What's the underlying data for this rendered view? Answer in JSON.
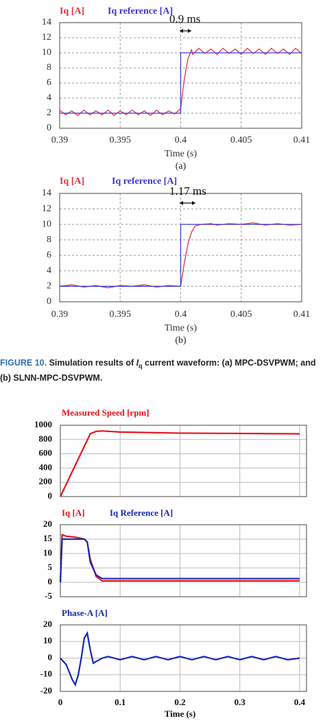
{
  "chart_data": [
    {
      "type": "line",
      "xlabel": "Time (s)",
      "caption": "(a)",
      "annotation": "0.9 ms",
      "xlim": [
        0.39,
        0.41
      ],
      "xticks": [
        0.39,
        0.395,
        0.4,
        0.405,
        0.41
      ],
      "ylim": [
        0,
        14
      ],
      "yticks": [
        0,
        2,
        4,
        6,
        8,
        10,
        12,
        14
      ],
      "grid": true,
      "series": [
        {
          "name": "Iq [A]",
          "color": "#e8323c",
          "x": [
            0.39,
            0.3905,
            0.391,
            0.3915,
            0.392,
            0.3925,
            0.393,
            0.3935,
            0.394,
            0.3945,
            0.395,
            0.3955,
            0.396,
            0.3965,
            0.397,
            0.3975,
            0.398,
            0.3985,
            0.399,
            0.3995,
            0.4,
            0.4003,
            0.4006,
            0.4009,
            0.401,
            0.4015,
            0.402,
            0.4025,
            0.403,
            0.4035,
            0.404,
            0.4045,
            0.405,
            0.4055,
            0.406,
            0.4065,
            0.407,
            0.4075,
            0.408,
            0.4085,
            0.409,
            0.4095,
            0.41
          ],
          "values": [
            2.4,
            1.8,
            2.3,
            1.7,
            2.4,
            1.8,
            2.3,
            1.8,
            2.4,
            1.7,
            2.3,
            1.8,
            2.4,
            1.8,
            2.3,
            1.7,
            2.4,
            1.8,
            2.3,
            1.9,
            2.6,
            6.5,
            9.2,
            10.4,
            9.8,
            10.6,
            9.9,
            10.5,
            9.8,
            10.6,
            9.9,
            10.5,
            9.8,
            10.6,
            9.9,
            10.5,
            9.8,
            10.6,
            9.9,
            10.5,
            9.8,
            10.6,
            9.9
          ]
        },
        {
          "name": "Iq reference [A]",
          "color": "#3b3bd6",
          "x": [
            0.39,
            0.4,
            0.4,
            0.41
          ],
          "values": [
            2,
            2,
            10,
            10
          ]
        }
      ]
    },
    {
      "type": "line",
      "xlabel": "Time (s)",
      "caption": "(b)",
      "annotation": "1.17 ms",
      "xlim": [
        0.39,
        0.41
      ],
      "xticks": [
        0.39,
        0.395,
        0.4,
        0.405,
        0.41
      ],
      "ylim": [
        0,
        14
      ],
      "yticks": [
        0,
        2,
        4,
        6,
        8,
        10,
        12,
        14
      ],
      "grid": true,
      "series": [
        {
          "name": "Iq [A]",
          "color": "#e8323c",
          "x": [
            0.39,
            0.391,
            0.392,
            0.393,
            0.394,
            0.395,
            0.396,
            0.397,
            0.398,
            0.399,
            0.4,
            0.4003,
            0.4006,
            0.4009,
            0.4012,
            0.4017,
            0.4025,
            0.403,
            0.404,
            0.405,
            0.406,
            0.407,
            0.408,
            0.409,
            0.41
          ],
          "values": [
            2,
            2.2,
            1.9,
            2.1,
            1.8,
            2.1,
            2,
            2.2,
            1.9,
            2.1,
            2,
            5,
            7.5,
            9,
            9.8,
            10,
            10.1,
            9.9,
            10.1,
            10,
            10.2,
            9.9,
            10.1,
            9.9,
            10
          ]
        },
        {
          "name": "Iq reference [A]",
          "color": "#3b3bd6",
          "x": [
            0.39,
            0.4,
            0.4,
            0.41
          ],
          "values": [
            2,
            2,
            10,
            10
          ]
        }
      ]
    },
    {
      "type": "line",
      "xlim": [
        0,
        0.4
      ],
      "xticks": [
        0,
        0.1,
        0.2,
        0.3,
        0.4
      ],
      "ylim": [
        0,
        1000
      ],
      "yticks": [
        0,
        200,
        400,
        600,
        800,
        1000
      ],
      "grid": true,
      "series": [
        {
          "name": "Measured Speed [rpm]",
          "color": "#e8141c",
          "x": [
            0,
            0.05,
            0.06,
            0.07,
            0.1,
            0.2,
            0.3,
            0.4
          ],
          "values": [
            0,
            880,
            915,
            920,
            905,
            890,
            885,
            880
          ]
        }
      ]
    },
    {
      "type": "line",
      "xlim": [
        0,
        0.4
      ],
      "xticks": [
        0,
        0.1,
        0.2,
        0.3,
        0.4
      ],
      "ylim": [
        -5,
        20
      ],
      "yticks": [
        -5,
        0,
        5,
        10,
        15,
        20
      ],
      "grid": true,
      "series": [
        {
          "name": "Iq [A]",
          "color": "#e8141c",
          "x": [
            0,
            0.003,
            0.01,
            0.02,
            0.03,
            0.04,
            0.045,
            0.05,
            0.06,
            0.07,
            0.1,
            0.2,
            0.3,
            0.4
          ],
          "values": [
            0,
            16.5,
            16,
            15.8,
            15.5,
            15,
            14,
            8,
            2,
            0.5,
            0.5,
            0.5,
            0.5,
            0.5
          ]
        },
        {
          "name": "Iq Reference [A]",
          "color": "#1428b4",
          "x": [
            0,
            0.003,
            0.01,
            0.02,
            0.03,
            0.04,
            0.045,
            0.05,
            0.06,
            0.07,
            0.1,
            0.2,
            0.3,
            0.4
          ],
          "values": [
            0,
            15,
            15,
            15,
            15,
            15,
            14,
            7,
            2.5,
            1.3,
            1.3,
            1.3,
            1.3,
            1.3
          ]
        }
      ]
    },
    {
      "type": "line",
      "xlabel": "Time (s)",
      "xlim": [
        0,
        0.4
      ],
      "xticks": [
        0,
        0.1,
        0.2,
        0.3,
        0.4
      ],
      "ylim": [
        -20,
        20
      ],
      "yticks": [
        -20,
        -10,
        0,
        10,
        20
      ],
      "grid": true,
      "series": [
        {
          "name": "Phase-A [A]",
          "color": "#1428b4",
          "x": [
            0,
            0.01,
            0.02,
            0.025,
            0.03,
            0.035,
            0.04,
            0.045,
            0.05,
            0.055,
            0.06,
            0.07,
            0.08,
            0.1,
            0.12,
            0.14,
            0.16,
            0.18,
            0.2,
            0.22,
            0.24,
            0.26,
            0.28,
            0.3,
            0.32,
            0.34,
            0.36,
            0.38,
            0.4
          ],
          "values": [
            0,
            -4,
            -13,
            -16,
            -10,
            0,
            12,
            15,
            5,
            -3,
            -2,
            0,
            1,
            -1,
            1,
            -1,
            1,
            -1,
            1,
            -1,
            1,
            -1,
            1,
            -1,
            1,
            -1,
            1,
            -1,
            0
          ]
        }
      ]
    }
  ],
  "figure_caption": {
    "label": "FIGURE 10.",
    "text": "Simulation results of",
    "symbol": "I",
    "subscript": "q",
    "rest": "current waveform: (a) MPC-DSVPWM; and (b) SLNN-MPC-DSVPWM."
  }
}
